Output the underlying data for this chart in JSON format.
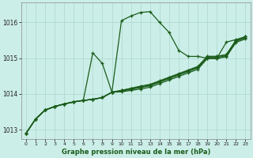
{
  "title": "Graphe pression niveau de la mer (hPa)",
  "background_color": "#cceee8",
  "grid_color": "#aad8cc",
  "line_color": "#1a5c1a",
  "xlim": [
    -0.5,
    23.5
  ],
  "ylim": [
    1012.75,
    1016.55
  ],
  "yticks": [
    1013,
    1014,
    1015,
    1016
  ],
  "xticks": [
    0,
    1,
    2,
    3,
    4,
    5,
    6,
    7,
    8,
    9,
    10,
    11,
    12,
    13,
    14,
    15,
    16,
    17,
    18,
    19,
    20,
    21,
    22,
    23
  ],
  "series": {
    "main": [
      1012.9,
      1013.3,
      1013.55,
      1013.65,
      1013.72,
      1013.78,
      1013.82,
      1013.85,
      1013.9,
      1014.05,
      1016.05,
      1016.18,
      1016.28,
      1016.3,
      1016.0,
      1015.72,
      1015.22,
      1015.05,
      1015.05,
      1015.0,
      1015.0,
      1015.45,
      1015.52,
      1015.6
    ],
    "secondary": [
      1012.9,
      1013.3,
      1013.55,
      1013.65,
      1013.72,
      1013.78,
      1013.82,
      1015.15,
      1014.85,
      1014.05,
      1014.1,
      1014.15,
      1014.2,
      1014.25,
      1014.35,
      1014.45,
      1014.55,
      1014.65,
      1014.75,
      1015.05,
      1015.05,
      1015.1,
      1015.5,
      1015.6
    ],
    "linear1": [
      1012.9,
      1013.3,
      1013.55,
      1013.65,
      1013.72,
      1013.78,
      1013.82,
      1013.85,
      1013.9,
      1014.05,
      1014.1,
      1014.16,
      1014.22,
      1014.27,
      1014.37,
      1014.47,
      1014.57,
      1014.67,
      1014.77,
      1015.05,
      1015.05,
      1015.1,
      1015.5,
      1015.6
    ],
    "linear2": [
      1012.9,
      1013.3,
      1013.55,
      1013.65,
      1013.72,
      1013.78,
      1013.82,
      1013.85,
      1013.9,
      1014.05,
      1014.08,
      1014.13,
      1014.18,
      1014.23,
      1014.33,
      1014.43,
      1014.53,
      1014.63,
      1014.73,
      1015.02,
      1015.02,
      1015.07,
      1015.47,
      1015.57
    ],
    "linear3": [
      1012.9,
      1013.3,
      1013.55,
      1013.65,
      1013.72,
      1013.78,
      1013.82,
      1013.85,
      1013.9,
      1014.05,
      1014.06,
      1014.1,
      1014.14,
      1014.19,
      1014.29,
      1014.39,
      1014.49,
      1014.59,
      1014.69,
      1014.99,
      1014.99,
      1015.04,
      1015.44,
      1015.54
    ]
  }
}
